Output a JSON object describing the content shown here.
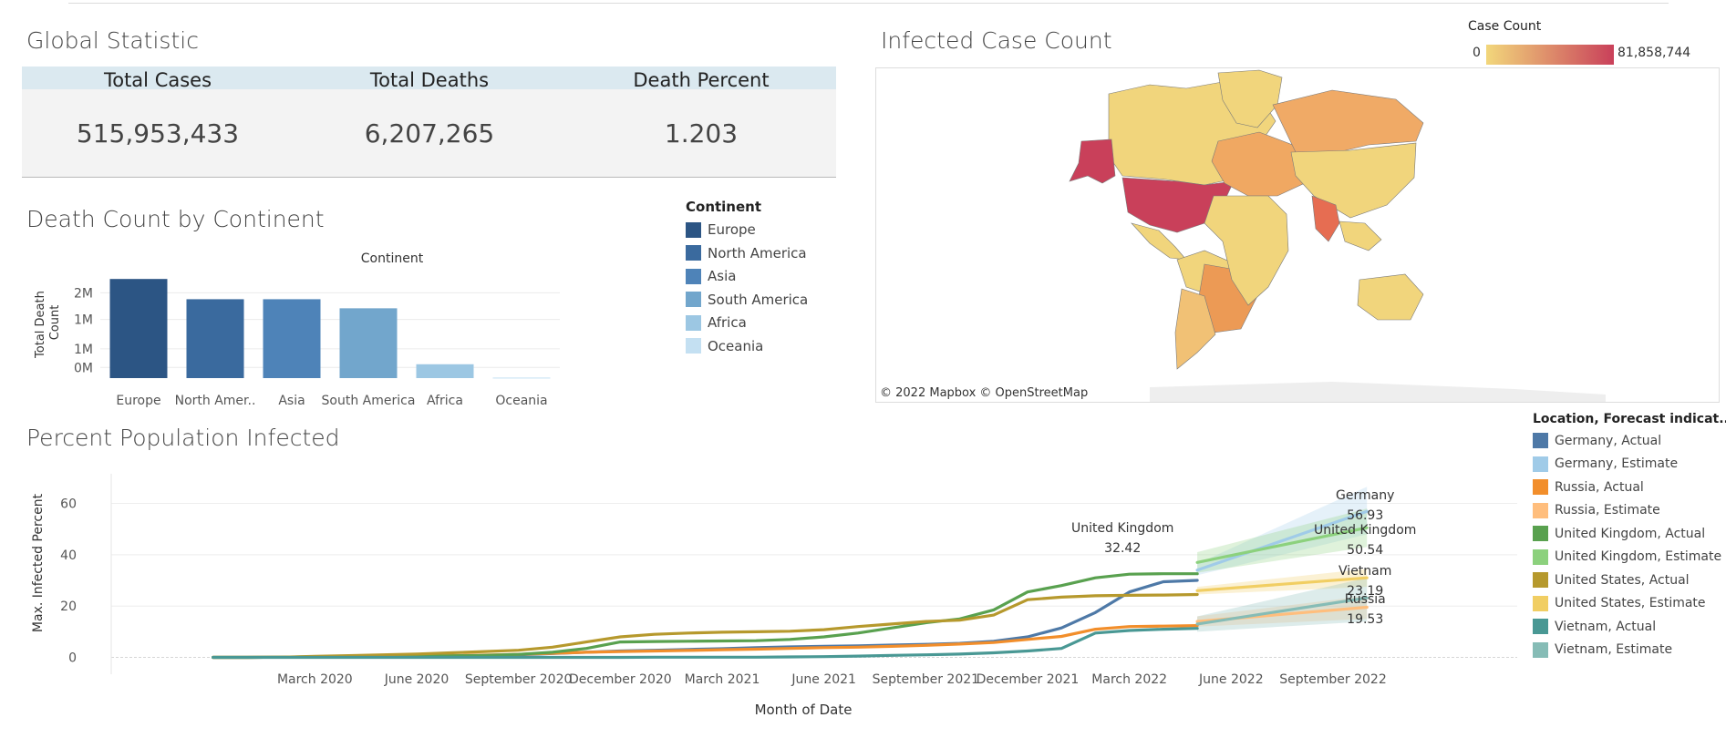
{
  "global": {
    "title": "Global Statistic",
    "kpis": [
      {
        "label": "Total Cases",
        "value": "515,953,433"
      },
      {
        "label": "Total Deaths",
        "value": "6,207,265"
      },
      {
        "label": "Death Percent",
        "value": "1.203"
      }
    ]
  },
  "map": {
    "title": "Infected Case Count",
    "legend_title": "Case Count",
    "legend_min": "0",
    "legend_max": "81,858,744",
    "attribution": "© 2022 Mapbox  © OpenStreetMap",
    "color_low": "#f2d77b",
    "color_high": "#c9405a"
  },
  "chart_data": [
    {
      "type": "bar",
      "title": "Death Count by Continent",
      "subtitle": "Continent",
      "xlabel": "",
      "ylabel": "Total Death Count",
      "categories": [
        "Europe",
        "North Amer..",
        "Asia",
        "South America",
        "Africa",
        "Oceania"
      ],
      "values": [
        1860000,
        1480000,
        1480000,
        1310000,
        260000,
        10000
      ],
      "colors": [
        "#2c5584",
        "#3a6a9e",
        "#4e83b8",
        "#72a6cc",
        "#9cc7e3",
        "#c4e0f2"
      ],
      "ytick_labels": [
        "2M",
        "1M",
        "1M",
        "0M"
      ],
      "ytick_values": [
        1600000,
        1100000,
        550000,
        200000
      ],
      "ylim": [
        0,
        2000000
      ],
      "legend_title": "Continent",
      "legend": [
        "Europe",
        "North America",
        "Asia",
        "South America",
        "Africa",
        "Oceania"
      ]
    },
    {
      "type": "line",
      "title": "Percent Population Infected",
      "xlabel": "Month of Date",
      "ylabel": "Max. Infected Percent",
      "ylim": [
        -3,
        68
      ],
      "xlim": [
        -4,
        32
      ],
      "yticks": [
        0,
        20,
        40,
        60
      ],
      "xticks": [
        {
          "m": 2,
          "label": "March 2020"
        },
        {
          "m": 5,
          "label": "June 2020"
        },
        {
          "m": 8,
          "label": "September 2020"
        },
        {
          "m": 11,
          "label": "December 2020"
        },
        {
          "m": 14,
          "label": "March 2021"
        },
        {
          "m": 17,
          "label": "June 2021"
        },
        {
          "m": 20,
          "label": "September 2021"
        },
        {
          "m": 23,
          "label": "December 2021"
        },
        {
          "m": 26,
          "label": "March 2022"
        },
        {
          "m": 29,
          "label": "June 2022"
        },
        {
          "m": 32,
          "label": "September 2022"
        }
      ],
      "legend_title": "Location, Forecast indicat...",
      "series": [
        {
          "name": "Germany, Actual",
          "color": "#4e79a7",
          "x": [
            -1,
            0,
            1,
            2,
            3,
            4,
            5,
            6,
            7,
            8,
            9,
            10,
            11,
            12,
            13,
            14,
            15,
            16,
            17,
            18,
            19,
            20,
            21,
            22,
            23,
            24,
            25,
            26,
            27,
            28
          ],
          "y": [
            0,
            0,
            0.1,
            0.2,
            0.2,
            0.3,
            0.3,
            0.4,
            0.6,
            1.0,
            1.5,
            2.0,
            2.5,
            2.8,
            3.1,
            3.4,
            3.8,
            4.1,
            4.3,
            4.5,
            4.8,
            5.1,
            5.5,
            6.3,
            8.0,
            11.5,
            17.5,
            25.5,
            29.5,
            30.0
          ]
        },
        {
          "name": "Germany, Estimate",
          "color": "#a0cbe8",
          "x": [
            28,
            33
          ],
          "y": [
            34,
            56.93
          ],
          "band": [
            [
              28,
              32,
              36.5
            ],
            [
              33,
              48,
              66.5
            ]
          ]
        },
        {
          "name": "Russia, Actual",
          "color": "#f28e2b",
          "x": [
            -1,
            0,
            1,
            2,
            3,
            4,
            5,
            6,
            7,
            8,
            9,
            10,
            11,
            12,
            13,
            14,
            15,
            16,
            17,
            18,
            19,
            20,
            21,
            22,
            23,
            24,
            25,
            26,
            27,
            28
          ],
          "y": [
            0,
            0,
            0.1,
            0.2,
            0.3,
            0.4,
            0.5,
            0.7,
            0.9,
            1.2,
            1.6,
            2.0,
            2.3,
            2.5,
            2.7,
            3.0,
            3.2,
            3.5,
            3.8,
            4.0,
            4.3,
            4.7,
            5.2,
            5.8,
            7.0,
            8.2,
            11.0,
            12.0,
            12.2,
            12.4
          ]
        },
        {
          "name": "Russia, Estimate",
          "color": "#ffbe7d",
          "x": [
            28,
            33
          ],
          "y": [
            14,
            19.53
          ],
          "band": [
            [
              28,
              12,
              16
            ],
            [
              33,
              15,
              24
            ]
          ]
        },
        {
          "name": "United Kingdom, Actual",
          "color": "#59a14f",
          "x": [
            -1,
            0,
            1,
            2,
            3,
            4,
            5,
            6,
            7,
            8,
            9,
            10,
            11,
            12,
            13,
            14,
            15,
            16,
            17,
            18,
            19,
            20,
            21,
            22,
            23,
            24,
            25,
            26,
            27,
            28
          ],
          "y": [
            0,
            0,
            0.1,
            0.3,
            0.4,
            0.5,
            0.5,
            0.6,
            0.8,
            1.2,
            2.0,
            3.5,
            6.0,
            6.2,
            6.3,
            6.4,
            6.5,
            7.0,
            8.0,
            9.5,
            11.5,
            13.5,
            15.0,
            18.5,
            25.5,
            28.0,
            31.0,
            32.42,
            32.6,
            32.6
          ]
        },
        {
          "name": "United Kingdom, Estimate",
          "color": "#8cd17d",
          "x": [
            28,
            33
          ],
          "y": [
            37,
            50.54
          ],
          "band": [
            [
              28,
              33,
              41
            ],
            [
              33,
              43,
              58
            ]
          ]
        },
        {
          "name": "United States, Actual",
          "color": "#b6992d",
          "x": [
            -1,
            0,
            1,
            2,
            3,
            4,
            5,
            6,
            7,
            8,
            9,
            10,
            11,
            12,
            13,
            14,
            15,
            16,
            17,
            18,
            19,
            20,
            21,
            22,
            23,
            24,
            25,
            26,
            27,
            28
          ],
          "y": [
            0,
            0,
            0.1,
            0.4,
            0.7,
            1.0,
            1.3,
            1.8,
            2.3,
            2.8,
            4.0,
            6.0,
            8.0,
            9.0,
            9.5,
            9.8,
            10.0,
            10.2,
            10.8,
            12.0,
            13.0,
            14.0,
            14.5,
            16.5,
            22.5,
            23.5,
            24.0,
            24.2,
            24.3,
            24.5
          ]
        },
        {
          "name": "United States, Estimate",
          "color": "#f1ce63",
          "x": [
            28,
            33
          ],
          "y": [
            26,
            31
          ],
          "band": [
            [
              28,
              24.5,
              27.5
            ],
            [
              33,
              27.5,
              34.5
            ]
          ]
        },
        {
          "name": "Vietnam, Actual",
          "color": "#499894",
          "x": [
            -1,
            0,
            1,
            2,
            3,
            4,
            5,
            6,
            7,
            8,
            9,
            10,
            11,
            12,
            13,
            14,
            15,
            16,
            17,
            18,
            19,
            20,
            21,
            22,
            23,
            24,
            25,
            26,
            27,
            28
          ],
          "y": [
            0,
            0,
            0,
            0,
            0,
            0,
            0,
            0,
            0,
            0,
            0,
            0,
            0,
            0.1,
            0.1,
            0.1,
            0.1,
            0.2,
            0.3,
            0.5,
            0.8,
            1.0,
            1.3,
            1.8,
            2.5,
            3.5,
            9.5,
            10.5,
            11.0,
            11.3
          ]
        },
        {
          "name": "Vietnam, Estimate",
          "color": "#86bcb6",
          "x": [
            28,
            33
          ],
          "y": [
            13,
            23.19
          ],
          "band": [
            [
              28,
              10,
              16
            ],
            [
              33,
              14,
              31
            ]
          ]
        }
      ],
      "annotations": [
        {
          "label": "United Kingdom",
          "value": "32.42",
          "x": 25.8,
          "y": 32.42
        },
        {
          "label": "Germany",
          "value": "56.93",
          "x": 33,
          "y": 56.93
        },
        {
          "label": "United Kingdom",
          "value": "50.54",
          "x": 33,
          "y": 50.54
        },
        {
          "label": "Vietnam",
          "value": "23.19",
          "x": 33,
          "y": 23.19
        },
        {
          "label": "Russia",
          "value": "19.53",
          "x": 33,
          "y": 19.53
        }
      ]
    }
  ]
}
